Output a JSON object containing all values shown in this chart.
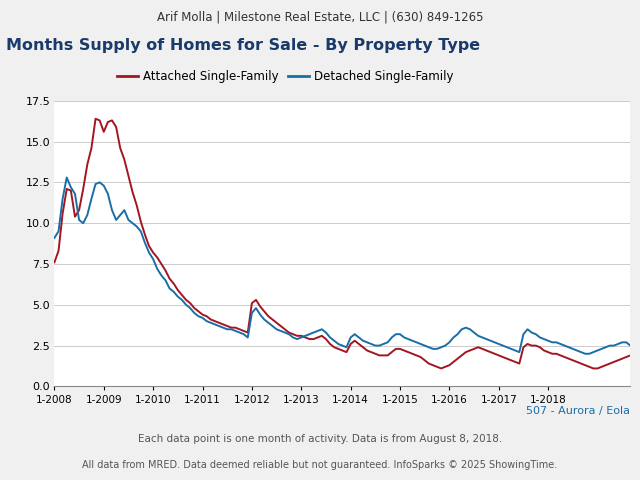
{
  "header_text": "Arif Molla | Milestone Real Estate, LLC | (630) 849-1265",
  "title": "Months Supply of Homes for Sale - By Property Type",
  "title_color": "#1a3a6b",
  "footer1": "507 - Aurora / Eola",
  "footer2": "Each data point is one month of activity. Data is from August 8, 2018.",
  "footer3": "All data from MRED. Data deemed reliable but not guaranteed. InfoSparks © 2025 ShowingTime.",
  "legend_labels": [
    "Attached Single-Family",
    "Detached Single-Family"
  ],
  "line_colors": [
    "#a31621",
    "#1a6ea8"
  ],
  "header_bg": "#e8e8e8",
  "plot_bg": "#ffffff",
  "fig_bg": "#f0f0f0",
  "ylim": [
    0.0,
    17.5
  ],
  "yticks": [
    0.0,
    2.5,
    5.0,
    7.5,
    10.0,
    12.5,
    15.0,
    17.5
  ],
  "xtick_labels": [
    "1-2008",
    "1-2009",
    "1-2010",
    "1-2011",
    "1-2012",
    "1-2013",
    "1-2014",
    "1-2015",
    "1-2016",
    "1-2017",
    "1-2018"
  ],
  "xtick_positions": [
    0,
    12,
    24,
    36,
    48,
    60,
    72,
    84,
    96,
    108,
    120
  ],
  "attached": [
    7.6,
    8.3,
    10.6,
    12.1,
    12.0,
    10.4,
    10.8,
    12.1,
    13.6,
    14.6,
    16.4,
    16.3,
    15.6,
    16.2,
    16.3,
    15.9,
    14.6,
    13.9,
    12.9,
    11.9,
    11.1,
    10.1,
    9.3,
    8.6,
    8.2,
    7.9,
    7.5,
    7.1,
    6.6,
    6.3,
    5.9,
    5.6,
    5.3,
    5.1,
    4.8,
    4.6,
    4.4,
    4.3,
    4.1,
    4.0,
    3.9,
    3.8,
    3.7,
    3.6,
    3.6,
    3.5,
    3.4,
    3.3,
    5.1,
    5.3,
    4.9,
    4.6,
    4.3,
    4.1,
    3.9,
    3.7,
    3.5,
    3.3,
    3.2,
    3.1,
    3.1,
    3.0,
    2.9,
    2.9,
    3.0,
    3.1,
    2.9,
    2.6,
    2.4,
    2.3,
    2.2,
    2.1,
    2.6,
    2.8,
    2.6,
    2.4,
    2.2,
    2.1,
    2.0,
    1.9,
    1.9,
    1.9,
    2.1,
    2.3,
    2.3,
    2.2,
    2.1,
    2.0,
    1.9,
    1.8,
    1.6,
    1.4,
    1.3,
    1.2,
    1.1,
    1.2,
    1.3,
    1.5,
    1.7,
    1.9,
    2.1,
    2.2,
    2.3,
    2.4,
    2.3,
    2.2,
    2.1,
    2.0,
    1.9,
    1.8,
    1.7,
    1.6,
    1.5,
    1.4,
    2.4,
    2.6,
    2.5,
    2.5,
    2.4,
    2.2,
    2.1,
    2.0,
    2.0,
    1.9,
    1.8,
    1.7,
    1.6,
    1.5,
    1.4,
    1.3,
    1.2,
    1.1,
    1.1,
    1.2,
    1.3,
    1.4,
    1.5,
    1.6,
    1.7,
    1.8,
    1.9
  ],
  "detached": [
    9.1,
    9.5,
    11.5,
    12.8,
    12.2,
    11.8,
    10.2,
    10.0,
    10.5,
    11.5,
    12.4,
    12.5,
    12.3,
    11.8,
    10.8,
    10.2,
    10.5,
    10.8,
    10.2,
    10.0,
    9.8,
    9.5,
    8.8,
    8.2,
    7.8,
    7.2,
    6.8,
    6.5,
    6.0,
    5.8,
    5.5,
    5.3,
    5.0,
    4.8,
    4.5,
    4.3,
    4.2,
    4.0,
    3.9,
    3.8,
    3.7,
    3.6,
    3.5,
    3.5,
    3.4,
    3.3,
    3.2,
    3.0,
    4.5,
    4.8,
    4.4,
    4.1,
    3.9,
    3.7,
    3.5,
    3.4,
    3.3,
    3.2,
    3.0,
    2.9,
    3.0,
    3.1,
    3.2,
    3.3,
    3.4,
    3.5,
    3.3,
    3.0,
    2.8,
    2.6,
    2.5,
    2.4,
    3.0,
    3.2,
    3.0,
    2.8,
    2.7,
    2.6,
    2.5,
    2.5,
    2.6,
    2.7,
    3.0,
    3.2,
    3.2,
    3.0,
    2.9,
    2.8,
    2.7,
    2.6,
    2.5,
    2.4,
    2.3,
    2.3,
    2.4,
    2.5,
    2.7,
    3.0,
    3.2,
    3.5,
    3.6,
    3.5,
    3.3,
    3.1,
    3.0,
    2.9,
    2.8,
    2.7,
    2.6,
    2.5,
    2.4,
    2.3,
    2.2,
    2.1,
    3.2,
    3.5,
    3.3,
    3.2,
    3.0,
    2.9,
    2.8,
    2.7,
    2.7,
    2.6,
    2.5,
    2.4,
    2.3,
    2.2,
    2.1,
    2.0,
    2.0,
    2.1,
    2.2,
    2.3,
    2.4,
    2.5,
    2.5,
    2.6,
    2.7,
    2.7,
    2.5
  ]
}
